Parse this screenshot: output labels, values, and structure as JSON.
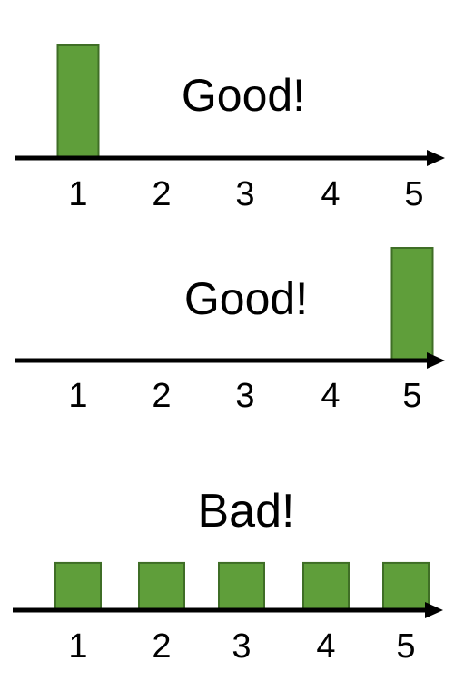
{
  "accent": "#5f9e3a",
  "bar_stroke": "#3f6e26",
  "chart_data": [
    {
      "type": "bar",
      "annotation": "Good!",
      "categories": [
        "1",
        "2",
        "3",
        "4",
        "5"
      ],
      "values": [
        1,
        0,
        0,
        0,
        0
      ],
      "ylim": [
        0,
        1
      ]
    },
    {
      "type": "bar",
      "annotation": "Good!",
      "categories": [
        "1",
        "2",
        "3",
        "4",
        "5"
      ],
      "values": [
        0,
        0,
        0,
        0,
        1
      ],
      "ylim": [
        0,
        1
      ]
    },
    {
      "type": "bar",
      "annotation": "Bad!",
      "categories": [
        "1",
        "2",
        "3",
        "4",
        "5"
      ],
      "values": [
        0.42,
        0.42,
        0.42,
        0.42,
        0.42
      ],
      "ylim": [
        0,
        1
      ]
    }
  ]
}
